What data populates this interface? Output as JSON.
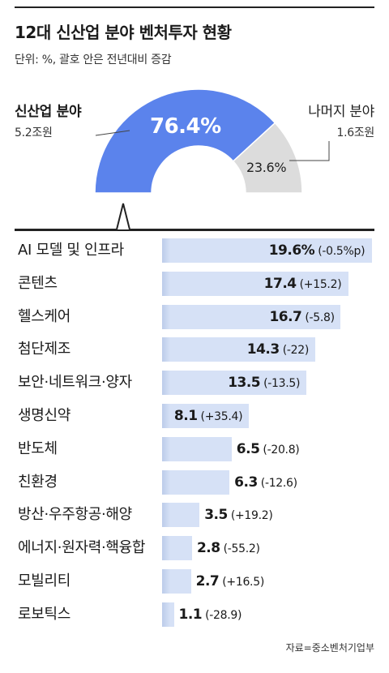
{
  "header": {
    "title": "12대 신산업 분야 벤처투자 현황",
    "subtitle": "단위: %, 괄호 안은 전년대비 증감"
  },
  "chart_data": [
    {
      "type": "pie",
      "variant": "half-donut",
      "slices": [
        {
          "name": "신산업 분야",
          "value": 76.4,
          "value_label": "76.4%",
          "amount": "5.2조원",
          "color": "#5b83ec"
        },
        {
          "name": "나머지 분야",
          "value": 23.6,
          "value_label": "23.6%",
          "amount": "1.6조원",
          "color": "#dcdcdc"
        }
      ]
    },
    {
      "type": "bar",
      "orientation": "horizontal",
      "bar_color": "#d6e1f6",
      "categories": [
        "AI 모델 및 인프라",
        "콘텐츠",
        "헬스케어",
        "첨단제조",
        "보안·네트워크·양자",
        "생명신약",
        "반도체",
        "친환경",
        "방산·우주항공·해양",
        "에너지·원자력·핵융합",
        "모빌리티",
        "로보틱스"
      ],
      "values": [
        19.6,
        17.4,
        16.7,
        14.3,
        13.5,
        8.1,
        6.5,
        6.3,
        3.5,
        2.8,
        2.7,
        1.1
      ],
      "value_labels": [
        "19.6%",
        "17.4",
        "16.7",
        "14.3",
        "13.5",
        "8.1",
        "6.5",
        "6.3",
        "3.5",
        "2.8",
        "2.7",
        "1.1"
      ],
      "changes": [
        "(-0.5%p)",
        "(+15.2)",
        "(-5.8)",
        "(-22)",
        "(-13.5)",
        "(+35.4)",
        "(-20.8)",
        "(-12.6)",
        "(+19.2)",
        "(-55.2)",
        "(+16.5)",
        "(-28.9)"
      ]
    }
  ],
  "footer": {
    "source": "자료=중소벤처기업부"
  }
}
